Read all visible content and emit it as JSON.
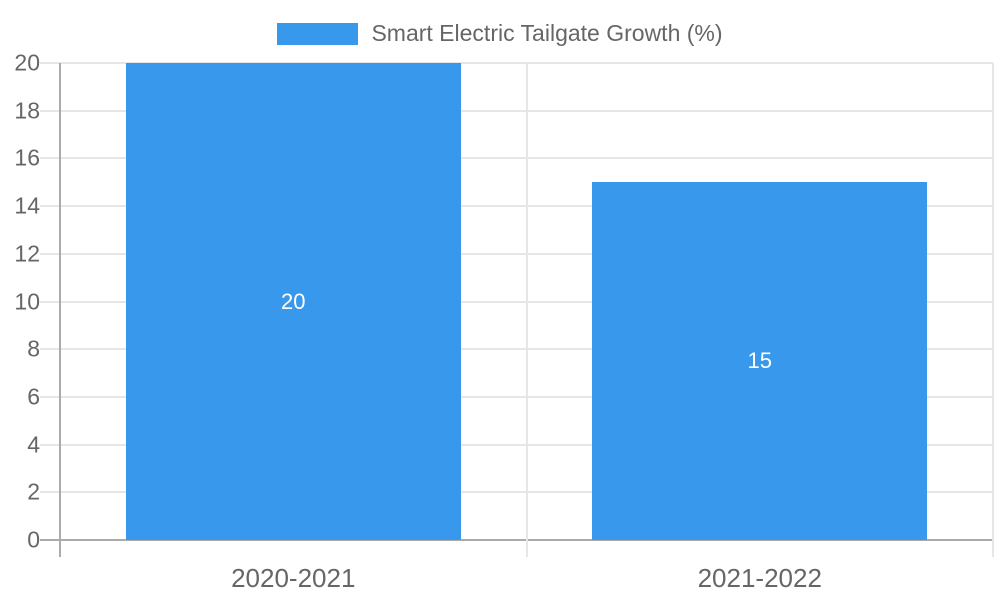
{
  "chart_data": {
    "type": "bar",
    "title": "",
    "legend": {
      "label": "Smart Electric Tailgate Growth (%)",
      "position": "top"
    },
    "categories": [
      "2020-2021",
      "2021-2022"
    ],
    "series": [
      {
        "name": "Smart Electric Tailgate Growth (%)",
        "values": [
          20,
          15
        ]
      }
    ],
    "bar_value_labels": [
      "20",
      "15"
    ],
    "xlabel": "",
    "ylabel": "",
    "ylim": [
      0,
      20
    ],
    "yticks": [
      0,
      2,
      4,
      6,
      8,
      10,
      12,
      14,
      16,
      18,
      20
    ],
    "grid": "horizontal-gridlines-and-category-boundaries",
    "colors": {
      "bar": "#3898EC",
      "grid": "#E6E6E6",
      "axis": "#ABABAB",
      "tick_text": "#666666",
      "legend_text": "#666666",
      "bar_label_text": "#FFFFFF",
      "background": "#FFFFFF"
    }
  }
}
